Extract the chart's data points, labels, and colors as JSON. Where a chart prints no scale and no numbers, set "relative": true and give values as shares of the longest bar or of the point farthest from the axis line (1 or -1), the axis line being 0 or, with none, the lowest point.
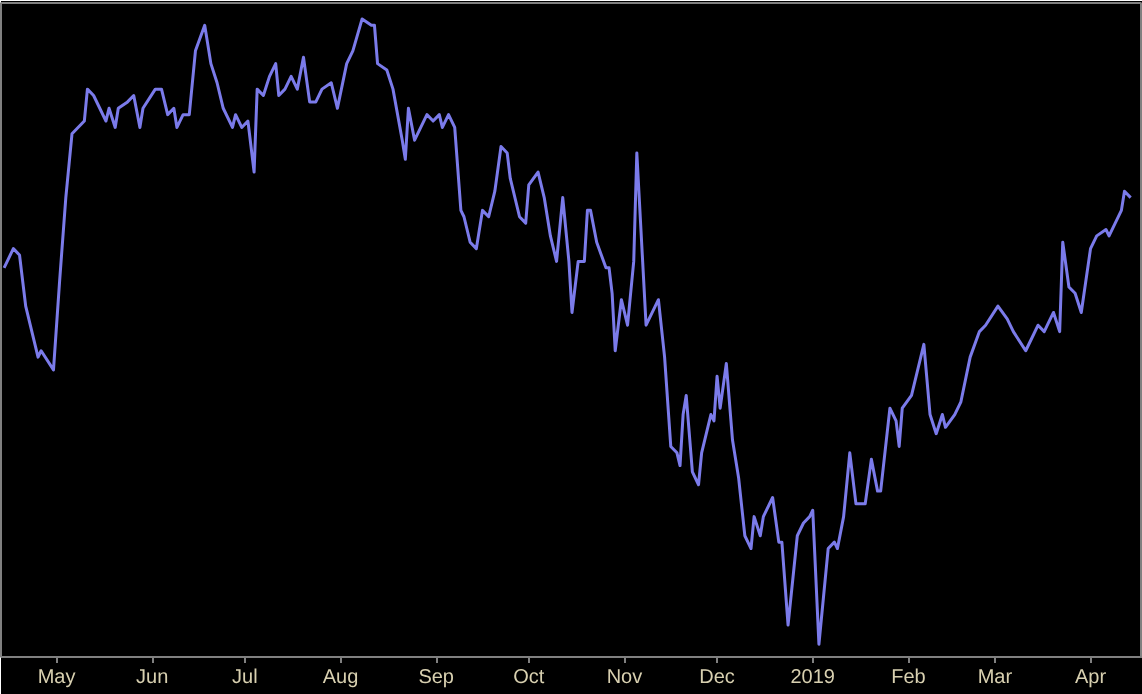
{
  "chart_data": {
    "type": "line",
    "relative": true,
    "line_style": "solid",
    "marker": "none",
    "grid": false,
    "tick_labels": "x",
    "xlim": [
      "2018-04-13",
      "2019-04-18"
    ],
    "xticks": [
      {
        "value": "2018-05-01",
        "label": "May"
      },
      {
        "value": "2018-06-01",
        "label": "Jun"
      },
      {
        "value": "2018-07-01",
        "label": "Jul"
      },
      {
        "value": "2018-08-01",
        "label": "Aug"
      },
      {
        "value": "2018-09-01",
        "label": "Sep"
      },
      {
        "value": "2018-10-01",
        "label": "Oct"
      },
      {
        "value": "2018-11-01",
        "label": "Nov"
      },
      {
        "value": "2018-12-01",
        "label": "Dec"
      },
      {
        "value": "2019-01-01",
        "label": "2019"
      },
      {
        "value": "2019-02-01",
        "label": "Feb"
      },
      {
        "value": "2019-03-01",
        "label": "Mar"
      },
      {
        "value": "2019-04-01",
        "label": "Apr"
      }
    ],
    "series": [
      {
        "color": "#7b7bea",
        "x": [
          "2018-04-14",
          "2018-04-17",
          "2018-04-19",
          "2018-04-21",
          "2018-04-25",
          "2018-04-26",
          "2018-04-30",
          "2018-05-02",
          "2018-05-04",
          "2018-05-06",
          "2018-05-10",
          "2018-05-11",
          "2018-05-13",
          "2018-05-15",
          "2018-05-17",
          "2018-05-18",
          "2018-05-20",
          "2018-05-21",
          "2018-05-24",
          "2018-05-26",
          "2018-05-28",
          "2018-05-29",
          "2018-06-02",
          "2018-06-04",
          "2018-06-06",
          "2018-06-08",
          "2018-06-09",
          "2018-06-11",
          "2018-06-13",
          "2018-06-15",
          "2018-06-18",
          "2018-06-20",
          "2018-06-22",
          "2018-06-24",
          "2018-06-27",
          "2018-06-28",
          "2018-06-30",
          "2018-07-02",
          "2018-07-04",
          "2018-07-05",
          "2018-07-07",
          "2018-07-09",
          "2018-07-11",
          "2018-07-12",
          "2018-07-14",
          "2018-07-16",
          "2018-07-18",
          "2018-07-20",
          "2018-07-22",
          "2018-07-24",
          "2018-07-26",
          "2018-07-29",
          "2018-07-31",
          "2018-08-03",
          "2018-08-05",
          "2018-08-08",
          "2018-08-11",
          "2018-08-12",
          "2018-08-13",
          "2018-08-16",
          "2018-08-18",
          "2018-08-21",
          "2018-08-22",
          "2018-08-23",
          "2018-08-25",
          "2018-08-27",
          "2018-08-29",
          "2018-08-31",
          "2018-09-02",
          "2018-09-03",
          "2018-09-05",
          "2018-09-07",
          "2018-09-09",
          "2018-09-10",
          "2018-09-12",
          "2018-09-14",
          "2018-09-16",
          "2018-09-18",
          "2018-09-20",
          "2018-09-22",
          "2018-09-24",
          "2018-09-25",
          "2018-09-28",
          "2018-09-30",
          "2018-10-01",
          "2018-10-04",
          "2018-10-06",
          "2018-10-08",
          "2018-10-10",
          "2018-10-12",
          "2018-10-14",
          "2018-10-15",
          "2018-10-17",
          "2018-10-19",
          "2018-10-20",
          "2018-10-21",
          "2018-10-23",
          "2018-10-26",
          "2018-10-27",
          "2018-10-28",
          "2018-10-29",
          "2018-10-31",
          "2018-11-02",
          "2018-11-04",
          "2018-11-05",
          "2018-11-08",
          "2018-11-12",
          "2018-11-14",
          "2018-11-16",
          "2018-11-18",
          "2018-11-19",
          "2018-11-20",
          "2018-11-21",
          "2018-11-23",
          "2018-11-25",
          "2018-11-26",
          "2018-11-29",
          "2018-11-30",
          "2018-12-01",
          "2018-12-02",
          "2018-12-04",
          "2018-12-06",
          "2018-12-08",
          "2018-12-10",
          "2018-12-12",
          "2018-12-13",
          "2018-12-15",
          "2018-12-16",
          "2018-12-19",
          "2018-12-21",
          "2018-12-22",
          "2018-12-24",
          "2018-12-27",
          "2018-12-29",
          "2018-12-31",
          "2019-01-01",
          "2019-01-03",
          "2019-01-06",
          "2019-01-08",
          "2019-01-09",
          "2019-01-11",
          "2019-01-13",
          "2019-01-15",
          "2019-01-18",
          "2019-01-20",
          "2019-01-22",
          "2019-01-23",
          "2019-01-26",
          "2019-01-28",
          "2019-01-29",
          "2019-01-30",
          "2019-02-02",
          "2019-02-06",
          "2019-02-08",
          "2019-02-10",
          "2019-02-12",
          "2019-02-13",
          "2019-02-16",
          "2019-02-18",
          "2019-02-21",
          "2019-02-24",
          "2019-02-26",
          "2019-03-02",
          "2019-03-05",
          "2019-03-07",
          "2019-03-11",
          "2019-03-13",
          "2019-03-15",
          "2019-03-17",
          "2019-03-18",
          "2019-03-20",
          "2019-03-22",
          "2019-03-23",
          "2019-03-25",
          "2019-03-27",
          "2019-03-29",
          "2019-04-01",
          "2019-04-03",
          "2019-04-06",
          "2019-04-07",
          "2019-04-09",
          "2019-04-11",
          "2019-04-12",
          "2019-04-14"
        ],
        "values": [
          0.61,
          0.64,
          0.63,
          0.55,
          0.47,
          0.48,
          0.45,
          0.59,
          0.72,
          0.82,
          0.84,
          0.89,
          0.88,
          0.86,
          0.84,
          0.86,
          0.83,
          0.86,
          0.87,
          0.88,
          0.83,
          0.86,
          0.89,
          0.89,
          0.85,
          0.86,
          0.83,
          0.85,
          0.85,
          0.95,
          0.99,
          0.93,
          0.9,
          0.86,
          0.83,
          0.85,
          0.83,
          0.84,
          0.76,
          0.89,
          0.88,
          0.91,
          0.93,
          0.88,
          0.89,
          0.91,
          0.89,
          0.94,
          0.87,
          0.87,
          0.89,
          0.9,
          0.86,
          0.93,
          0.95,
          1.0,
          0.99,
          0.99,
          0.93,
          0.92,
          0.89,
          0.81,
          0.78,
          0.86,
          0.81,
          0.83,
          0.85,
          0.84,
          0.85,
          0.83,
          0.85,
          0.83,
          0.7,
          0.69,
          0.65,
          0.64,
          0.7,
          0.69,
          0.73,
          0.8,
          0.79,
          0.75,
          0.69,
          0.68,
          0.74,
          0.76,
          0.72,
          0.66,
          0.62,
          0.72,
          0.62,
          0.54,
          0.62,
          0.62,
          0.7,
          0.7,
          0.65,
          0.61,
          0.61,
          0.57,
          0.48,
          0.56,
          0.52,
          0.62,
          0.79,
          0.52,
          0.56,
          0.47,
          0.33,
          0.32,
          0.3,
          0.38,
          0.41,
          0.29,
          0.27,
          0.32,
          0.38,
          0.37,
          0.44,
          0.39,
          0.46,
          0.34,
          0.28,
          0.19,
          0.17,
          0.22,
          0.19,
          0.22,
          0.25,
          0.18,
          0.18,
          0.05,
          0.19,
          0.21,
          0.22,
          0.23,
          0.02,
          0.17,
          0.18,
          0.17,
          0.22,
          0.32,
          0.24,
          0.24,
          0.31,
          0.26,
          0.26,
          0.39,
          0.37,
          0.33,
          0.39,
          0.41,
          0.49,
          0.38,
          0.35,
          0.38,
          0.36,
          0.38,
          0.4,
          0.47,
          0.51,
          0.52,
          0.55,
          0.53,
          0.51,
          0.48,
          0.5,
          0.52,
          0.51,
          0.52,
          0.54,
          0.51,
          0.65,
          0.58,
          0.57,
          0.54,
          0.64,
          0.66,
          0.67,
          0.66,
          0.68,
          0.7,
          0.73,
          0.72
        ]
      }
    ]
  }
}
